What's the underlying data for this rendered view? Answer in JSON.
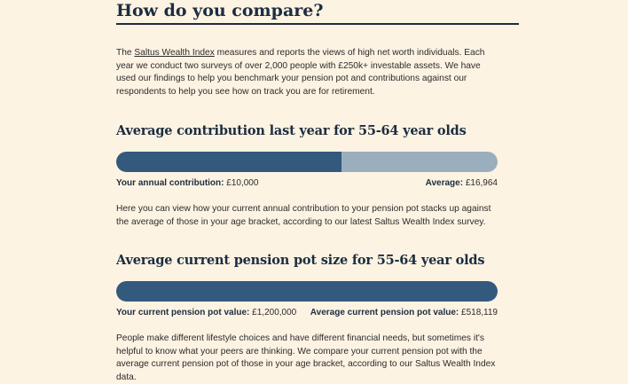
{
  "heading": "How do you compare?",
  "intro": {
    "before_link": "The ",
    "link_text": "Saltus Wealth Index",
    "after_link": " measures and reports the views of high net worth individuals. Each year we conduct two surveys of over 2,000 people with £250k+ investable assets. We have used our findings to help you benchmark your pension pot and contributions against our respondents to help you see how on track you are for retirement."
  },
  "contribution": {
    "title": "Average contribution last year for 55-64 year olds",
    "your_label": "Your annual contribution:",
    "your_value": "£10,000",
    "avg_label": "Average:",
    "avg_value": "£16,964",
    "fill_fraction": 0.59,
    "description": "Here you can view how your current annual contribution to your pension pot stacks up against the average of those in your age bracket, according to our latest Saltus Wealth Index survey."
  },
  "pot": {
    "title": "Average current pension pot size for 55-64 year olds",
    "your_label": "Your current pension pot value:",
    "your_value": "£1,200,000",
    "avg_label": "Average current pension pot value:",
    "avg_value": "£518,119",
    "fill_fraction": 1.0,
    "description": "People make different lifestyle choices and have different financial needs, but sometimes it's helpful to know what your peers are thinking. We compare your current pension pot with the average current pension pot of those in your age bracket, according to our Saltus Wealth Index data."
  },
  "colors": {
    "background": "#fdf3e3",
    "bar_fill": "#33597d",
    "bar_track": "#9aaebd",
    "heading": "#1c2d3f"
  }
}
